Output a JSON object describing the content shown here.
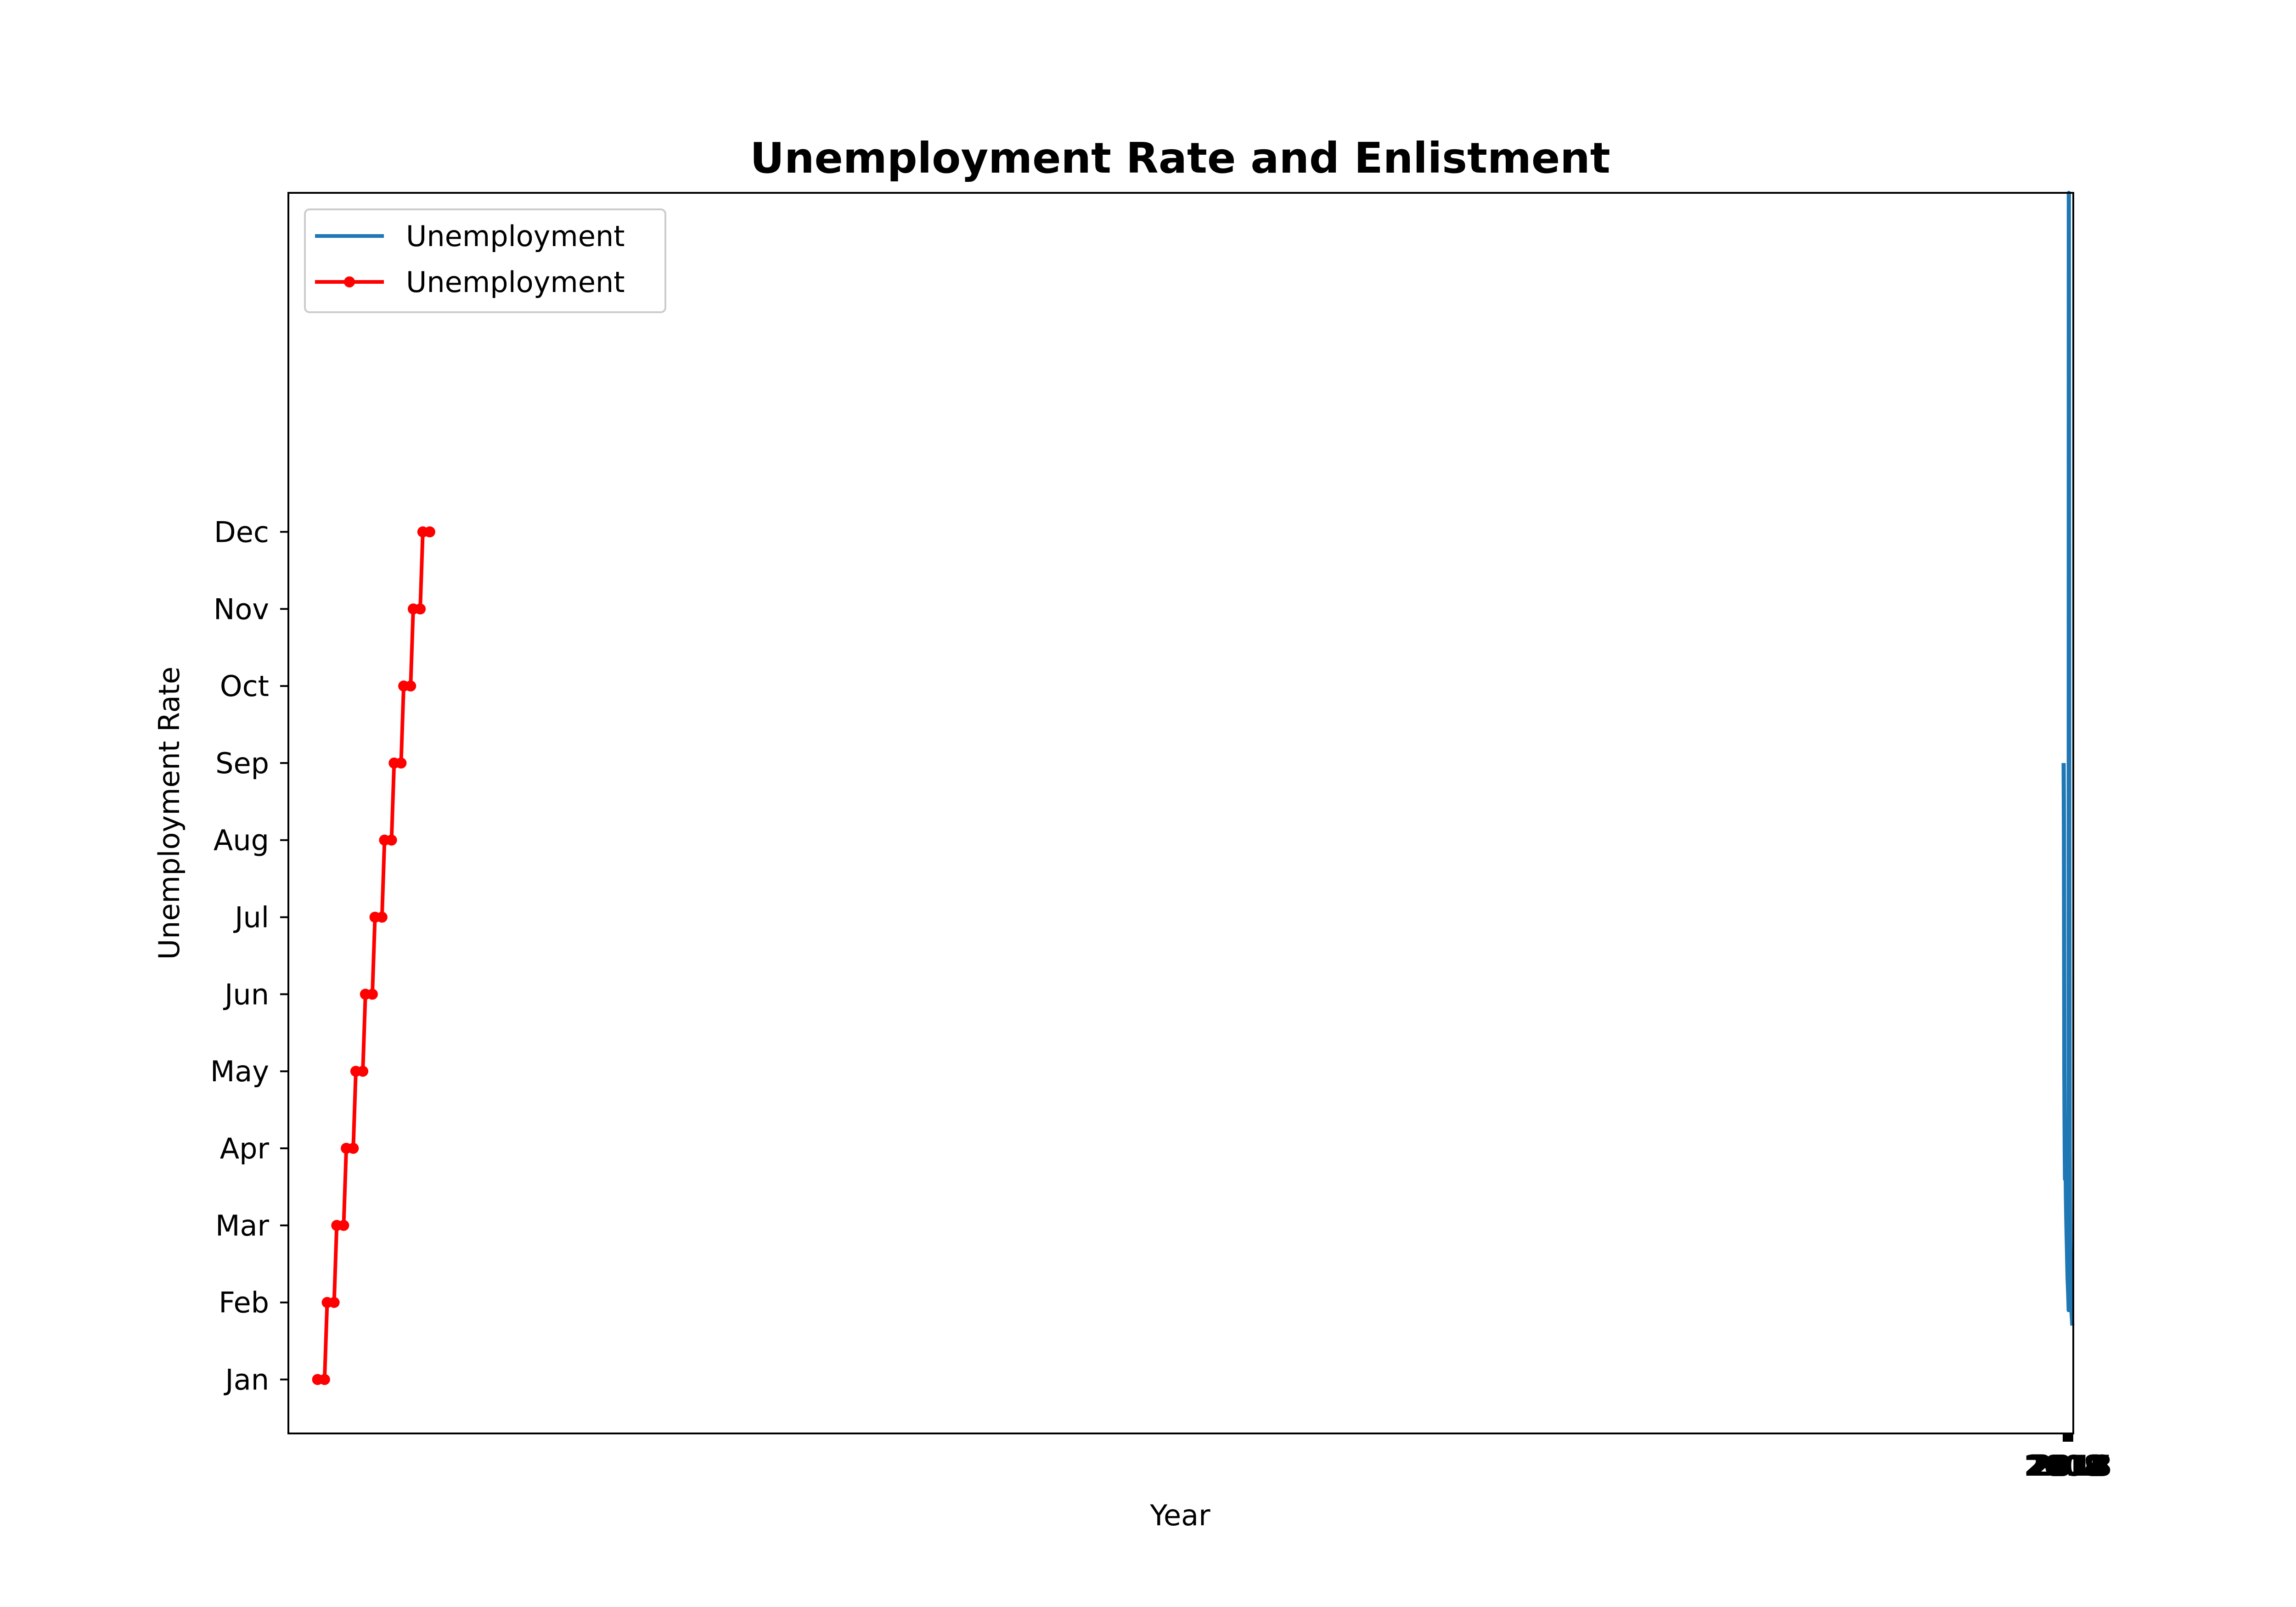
{
  "chart_data": {
    "type": "line",
    "title": "Unemployment Rate and Enlistment",
    "xlabel": "Year",
    "ylabel": "Unemployment Rate",
    "grid": false,
    "legend_placement": "upper-left",
    "colors": {
      "series_blue": "#1f77b4",
      "series_red": "#ff0000",
      "axes": "#000000",
      "legend_border": "#cccccc"
    },
    "x_ticks": [
      "2008",
      "2009",
      "2010",
      "2011",
      "2012",
      "2013",
      "2014",
      "2015",
      "2016",
      "2017",
      "2018"
    ],
    "y_ticks": [
      "Jan",
      "Feb",
      "Mar",
      "Apr",
      "May",
      "Jun",
      "Jul",
      "Aug",
      "Sep",
      "Oct",
      "Nov",
      "Dec"
    ],
    "xlim": [
      -33.6,
      2019.1
    ],
    "ylim": [
      0.3,
      16.4
    ],
    "series": [
      {
        "name": "Unemployment",
        "style": "line",
        "color": "#1f77b4",
        "points": [
          [
            2008,
            9.0
          ],
          [
            2008.2,
            8.5
          ],
          [
            2008.4,
            8.0
          ],
          [
            2008.6,
            6.5
          ],
          [
            2008.8,
            5.0
          ],
          [
            2009.0,
            4.5
          ],
          [
            2009.3,
            4.0
          ],
          [
            2009.6,
            3.6
          ],
          [
            2010.0,
            4.2
          ],
          [
            2010.3,
            3.8
          ],
          [
            2010.6,
            3.4
          ],
          [
            2011.0,
            3.1
          ],
          [
            2011.4,
            2.9
          ],
          [
            2011.8,
            2.7
          ],
          [
            2012.2,
            2.5
          ],
          [
            2012.6,
            2.3
          ],
          [
            2013.0,
            2.2
          ],
          [
            2013.3,
            2.1
          ],
          [
            2013.6,
            2.0
          ],
          [
            2013.8,
            1.9
          ],
          [
            2014.0,
            16.4
          ],
          [
            2014.5,
            8.0
          ],
          [
            2015.0,
            4.0
          ],
          [
            2015.5,
            2.8
          ],
          [
            2016.0,
            2.3
          ],
          [
            2016.5,
            2.0
          ],
          [
            2017.0,
            1.9
          ],
          [
            2017.5,
            1.8
          ],
          [
            2018.0,
            1.7
          ]
        ]
      },
      {
        "name": "Unemployment",
        "style": "line-marker",
        "color": "#ff0000",
        "points": [
          [
            0,
            1
          ],
          [
            8,
            1
          ],
          [
            11,
            2
          ],
          [
            19,
            2
          ],
          [
            22,
            3
          ],
          [
            30,
            3
          ],
          [
            33,
            4
          ],
          [
            41,
            4
          ],
          [
            44,
            5
          ],
          [
            52,
            5
          ],
          [
            55,
            6
          ],
          [
            63,
            6
          ],
          [
            66,
            7
          ],
          [
            74,
            7
          ],
          [
            77,
            8
          ],
          [
            85,
            8
          ],
          [
            88,
            9
          ],
          [
            96,
            9
          ],
          [
            99,
            10
          ],
          [
            107,
            10
          ],
          [
            110,
            11
          ],
          [
            118,
            11
          ],
          [
            121,
            12
          ],
          [
            129,
            12
          ]
        ]
      }
    ]
  }
}
